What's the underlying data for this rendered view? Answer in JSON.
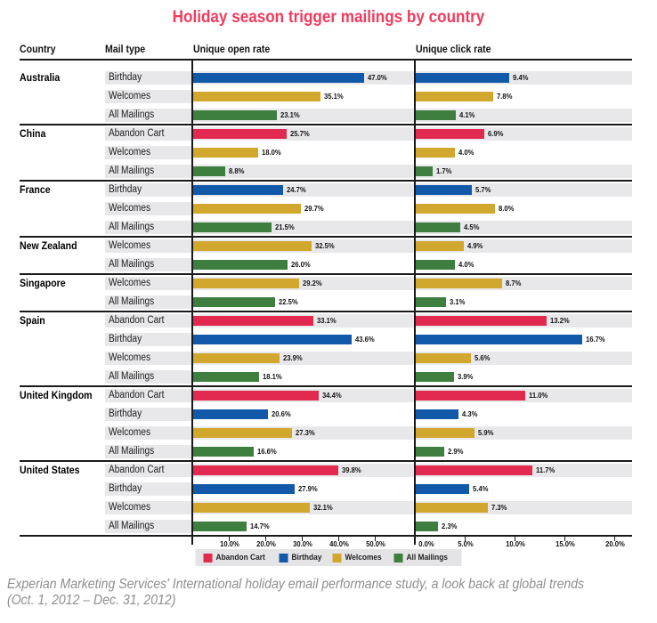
{
  "title": "Holiday season trigger mailings by country",
  "title_color": "#f23a5c",
  "columns": {
    "country": "Country",
    "mail_type": "Mail type",
    "open": "Unique open rate",
    "click": "Unique click rate"
  },
  "series_colors": {
    "Abandon Cart": "#e22a50",
    "Birthday": "#1259a9",
    "Welcomes": "#d2a72e",
    "All Mailings": "#3e7e3e"
  },
  "legend": [
    "Abandon Cart",
    "Birthday",
    "Welcomes",
    "All Mailings"
  ],
  "footer": {
    "line1": "Experian Marketing Services' International holiday email performance study, a look back at global trends",
    "line2": "(Oct. 1, 2012 – Dec. 31, 2012)"
  },
  "chart_data": {
    "type": "bar",
    "panels": [
      {
        "name": "Unique open rate",
        "ticks": [
          "10.0%",
          "20.0%",
          "30.0%",
          "40.0%",
          "50.0%"
        ],
        "tick_values": [
          10,
          20,
          30,
          40,
          50
        ],
        "max": 50
      },
      {
        "name": "Unique click rate",
        "ticks": [
          "0.0%",
          "5.0%",
          "10.0%",
          "15.0%",
          "20.0%"
        ],
        "tick_values": [
          0,
          5,
          10,
          15,
          20
        ],
        "max": 20
      }
    ],
    "countries": [
      {
        "name": "Australia",
        "rows": [
          {
            "type": "Birthday",
            "open": 47.0,
            "click": 9.4
          },
          {
            "type": "Welcomes",
            "open": 35.1,
            "click": 7.8
          },
          {
            "type": "All Mailings",
            "open": 23.1,
            "click": 4.1
          }
        ]
      },
      {
        "name": "China",
        "rows": [
          {
            "type": "Abandon Cart",
            "open": 25.7,
            "click": 6.9
          },
          {
            "type": "Welcomes",
            "open": 18.0,
            "click": 4.0
          },
          {
            "type": "All Mailings",
            "open": 8.8,
            "click": 1.7
          }
        ]
      },
      {
        "name": "France",
        "rows": [
          {
            "type": "Birthday",
            "open": 24.7,
            "click": 5.7
          },
          {
            "type": "Welcomes",
            "open": 29.7,
            "click": 8.0
          },
          {
            "type": "All Mailings",
            "open": 21.5,
            "click": 4.5
          }
        ]
      },
      {
        "name": "New Zealand",
        "rows": [
          {
            "type": "Welcomes",
            "open": 32.5,
            "click": 4.9
          },
          {
            "type": "All Mailings",
            "open": 26.0,
            "click": 4.0
          }
        ]
      },
      {
        "name": "Singapore",
        "rows": [
          {
            "type": "Welcomes",
            "open": 29.2,
            "click": 8.7
          },
          {
            "type": "All Mailings",
            "open": 22.5,
            "click": 3.1
          }
        ]
      },
      {
        "name": "Spain",
        "rows": [
          {
            "type": "Abandon Cart",
            "open": 33.1,
            "click": 13.2
          },
          {
            "type": "Birthday",
            "open": 43.6,
            "click": 16.7
          },
          {
            "type": "Welcomes",
            "open": 23.9,
            "click": 5.6
          },
          {
            "type": "All Mailings",
            "open": 18.1,
            "click": 3.9
          }
        ]
      },
      {
        "name": "United Kingdom",
        "rows": [
          {
            "type": "Abandon Cart",
            "open": 34.4,
            "click": 11.0
          },
          {
            "type": "Birthday",
            "open": 20.6,
            "click": 4.3
          },
          {
            "type": "Welcomes",
            "open": 27.3,
            "click": 5.9
          },
          {
            "type": "All Mailings",
            "open": 16.6,
            "click": 2.9
          }
        ]
      },
      {
        "name": "United States",
        "rows": [
          {
            "type": "Abandon Cart",
            "open": 39.8,
            "click": 11.7
          },
          {
            "type": "Birthday",
            "open": 27.9,
            "click": 5.4
          },
          {
            "type": "Welcomes",
            "open": 32.1,
            "click": 7.3
          },
          {
            "type": "All Mailings",
            "open": 14.7,
            "click": 2.3
          }
        ]
      }
    ]
  }
}
